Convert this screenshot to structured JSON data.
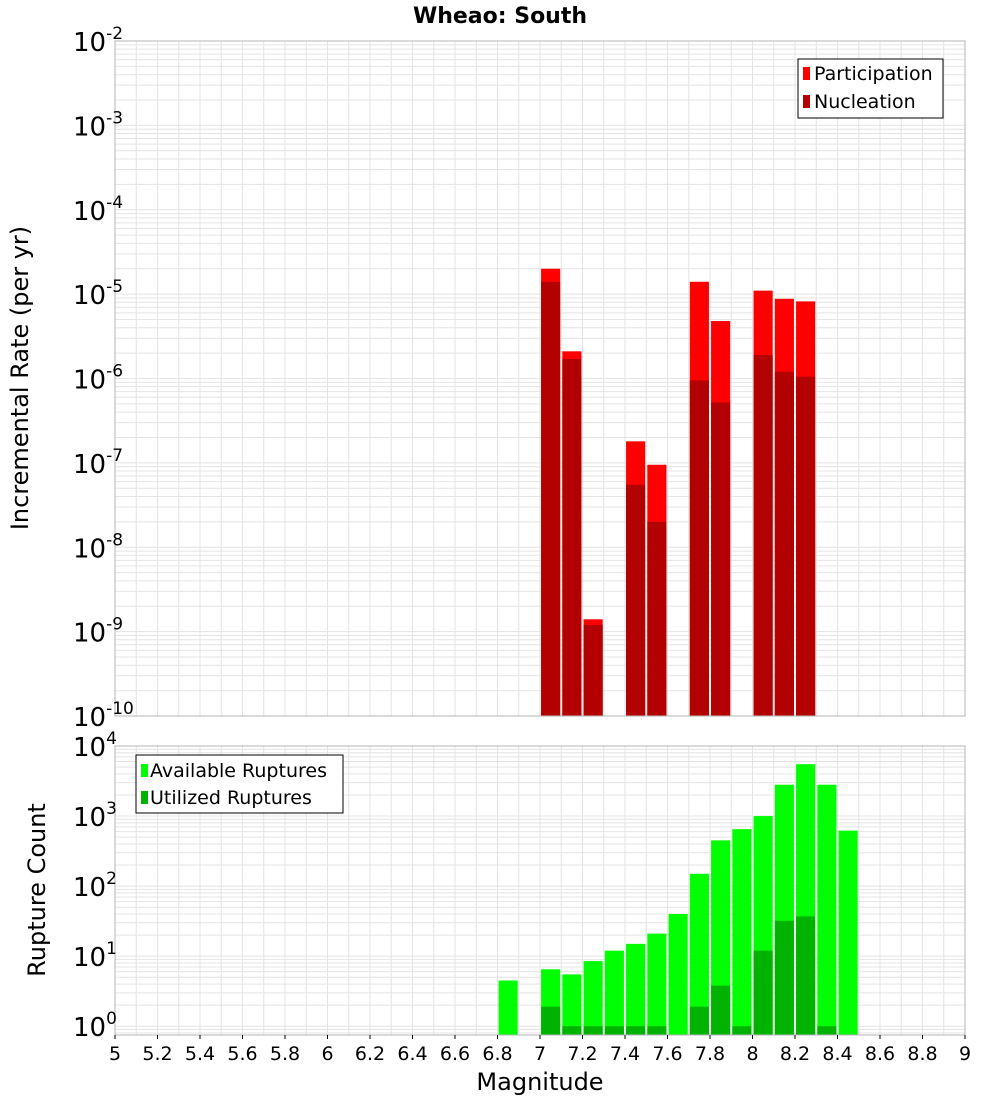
{
  "title": "Wheao: South",
  "chart_data": [
    {
      "type": "bar",
      "title": "Wheao: South",
      "ylabel": "Incremental Rate (per yr)",
      "xlabel": "",
      "yscale": "log",
      "ylim": [
        1e-10,
        0.01
      ],
      "xlim": [
        5,
        9
      ],
      "ytick_exponents": [
        -10,
        -9,
        -8,
        -7,
        -6,
        -5,
        -4,
        -3,
        -2
      ],
      "grid": true,
      "legend_position": "top-right",
      "series": [
        {
          "name": "Participation",
          "color": "#ff0000",
          "x": [
            7.05,
            7.15,
            7.25,
            7.45,
            7.55,
            7.75,
            7.85,
            8.05,
            8.15,
            8.25
          ],
          "values": [
            2e-05,
            2.1e-06,
            1.4e-09,
            1.8e-07,
            9.5e-08,
            1.4e-05,
            4.8e-06,
            1.1e-05,
            8.8e-06,
            8.2e-06
          ]
        },
        {
          "name": "Nucleation",
          "color": "#b30000",
          "x": [
            7.05,
            7.15,
            7.25,
            7.45,
            7.55,
            7.75,
            7.85,
            8.05,
            8.15,
            8.25
          ],
          "values": [
            1.4e-05,
            1.7e-06,
            1.2e-09,
            5.5e-08,
            2e-08,
            9.5e-07,
            5.2e-07,
            1.9e-06,
            1.2e-06,
            1.05e-06
          ]
        }
      ]
    },
    {
      "type": "bar",
      "title": "",
      "ylabel": "Rupture Count",
      "xlabel": "Magnitude",
      "yscale": "log",
      "ylim": [
        0.75,
        10000
      ],
      "xlim": [
        5,
        9
      ],
      "ytick_exponents": [
        0,
        1,
        2,
        3,
        4
      ],
      "xticks": [
        "5",
        "5.2",
        "5.4",
        "5.6",
        "5.8",
        "6",
        "6.2",
        "6.4",
        "6.6",
        "6.8",
        "7",
        "7.2",
        "7.4",
        "7.6",
        "7.8",
        "8",
        "8.2",
        "8.4",
        "8.6",
        "8.8",
        "9"
      ],
      "grid": true,
      "legend_position": "top-left",
      "series": [
        {
          "name": "Available Ruptures",
          "color": "#00ff00",
          "x": [
            6.85,
            7.05,
            7.15,
            7.25,
            7.35,
            7.45,
            7.55,
            7.65,
            7.75,
            7.85,
            7.95,
            8.05,
            8.15,
            8.25,
            8.35,
            8.45
          ],
          "values": [
            4.5,
            6.5,
            5.5,
            8.5,
            12,
            15,
            21,
            40,
            150,
            450,
            650,
            1000,
            2800,
            5500,
            2800,
            620
          ]
        },
        {
          "name": "Utilized Ruptures",
          "color": "#00b300",
          "x": [
            7.05,
            7.15,
            7.25,
            7.35,
            7.45,
            7.55,
            7.75,
            7.85,
            7.95,
            8.05,
            8.15,
            8.25,
            8.35
          ],
          "values": [
            1.9,
            1,
            1,
            1,
            1,
            1,
            1.9,
            3.8,
            1,
            12,
            32,
            37,
            1
          ]
        }
      ]
    }
  ]
}
